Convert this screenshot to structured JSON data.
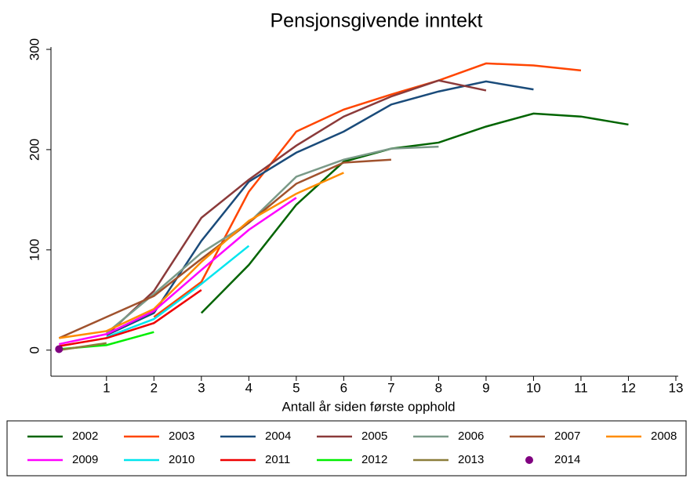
{
  "chart_data": {
    "type": "line",
    "title": "Pensjonsgivende inntekt",
    "x_label": "Antall år siden første opphold",
    "x": [
      0,
      1,
      2,
      3,
      4,
      5,
      6,
      7,
      8,
      9,
      10,
      11,
      12
    ],
    "xlim": [
      -0.17,
      13.05
    ],
    "xticks": [
      1,
      2,
      3,
      4,
      5,
      6,
      7,
      8,
      9,
      10,
      11,
      12,
      13
    ],
    "ylim": [
      -26,
      300
    ],
    "yticks": [
      0,
      100,
      200,
      300
    ],
    "series": [
      {
        "name": "2002",
        "color": "#006400",
        "values": [
          null,
          null,
          null,
          37,
          85,
          145,
          188,
          201,
          207,
          223,
          236,
          233,
          225
        ]
      },
      {
        "name": "2003",
        "color": "#ff4500",
        "values": [
          null,
          null,
          33,
          68,
          158,
          218,
          240,
          255,
          269,
          286,
          284,
          279,
          null
        ]
      },
      {
        "name": "2004",
        "color": "#1a4b7a",
        "values": [
          null,
          15,
          37,
          109,
          168,
          197,
          218,
          245,
          258,
          268,
          260,
          null,
          null
        ]
      },
      {
        "name": "2005",
        "color": "#8b3a3a",
        "values": [
          null,
          15,
          59,
          132,
          170,
          204,
          233,
          253,
          269,
          259,
          null,
          null,
          null
        ]
      },
      {
        "name": "2006",
        "color": "#7a9a88",
        "values": [
          null,
          17,
          56,
          97,
          127,
          173,
          190,
          201,
          203,
          null,
          null,
          null,
          null
        ]
      },
      {
        "name": "2007",
        "color": "#a0522d",
        "values": [
          12,
          33,
          54,
          91,
          127,
          166,
          187,
          190,
          null,
          null,
          null,
          null,
          null
        ]
      },
      {
        "name": "2008",
        "color": "#ff8c00",
        "values": [
          12,
          19,
          41,
          88,
          129,
          156,
          177,
          null,
          null,
          null,
          null,
          null,
          null
        ]
      },
      {
        "name": "2009",
        "color": "#ff00ff",
        "values": [
          6,
          16,
          39,
          80,
          120,
          152,
          null,
          null,
          null,
          null,
          null,
          null,
          null
        ]
      },
      {
        "name": "2010",
        "color": "#00e5ee",
        "values": [
          null,
          13,
          31,
          66,
          104,
          null,
          null,
          null,
          null,
          null,
          null,
          null,
          null
        ]
      },
      {
        "name": "2011",
        "color": "#ee0000",
        "values": [
          4,
          12,
          27,
          60,
          null,
          null,
          null,
          null,
          null,
          null,
          null,
          null,
          null
        ]
      },
      {
        "name": "2012",
        "color": "#00ee00",
        "values": [
          1,
          5,
          18,
          null,
          null,
          null,
          null,
          null,
          null,
          null,
          null,
          null,
          null
        ]
      },
      {
        "name": "2013",
        "color": "#8b7d3a",
        "values": [
          0,
          7,
          null,
          null,
          null,
          null,
          null,
          null,
          null,
          null,
          null,
          null,
          null
        ]
      },
      {
        "name": "2014",
        "color": "#800080",
        "mode": "markers",
        "values": [
          1,
          null,
          null,
          null,
          null,
          null,
          null,
          null,
          null,
          null,
          null,
          null,
          null
        ]
      }
    ]
  }
}
